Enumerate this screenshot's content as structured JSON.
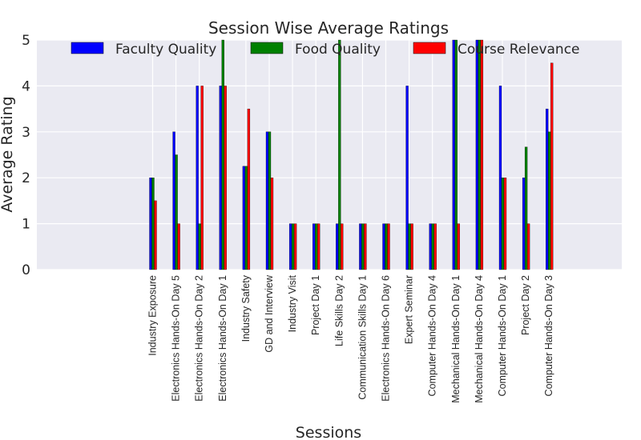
{
  "chart_data": {
    "type": "bar",
    "title": "Session Wise Average Ratings",
    "xlabel": "Sessions",
    "ylabel": "Average Rating",
    "ylim": [
      0,
      5
    ],
    "yticks": [
      "0",
      "1",
      "2",
      "3",
      "4",
      "5"
    ],
    "grid": true,
    "legend_position": "top",
    "categories": [
      "Industry Exposure",
      "Electronics Hands-On Day 5",
      "Electronics Hands-On Day 2",
      "Electronics Hands-On Day 1",
      "Industry Safety",
      "GD and Interview",
      "Industry Visit",
      "Project Day 1",
      "Life Skills Day 2",
      "Communication Skills Day 1",
      "Electronics Hands-On Day 6",
      "Expert Seminar",
      "Computer Hands-On Day 4",
      "Mechanical Hands-On Day 1",
      "Mechanical Hands-On Day 4",
      "Computer Hands-On Day 1",
      "Project Day 2",
      "Computer Hands-On Day 3"
    ],
    "series": [
      {
        "name": "Faculty Quality",
        "color": "#0000ff",
        "values": [
          2,
          3,
          4,
          4,
          2.25,
          3,
          1,
          1,
          1,
          1,
          1,
          4,
          1,
          5,
          5,
          4,
          2,
          3.5
        ]
      },
      {
        "name": "Food Quality",
        "color": "#008000",
        "values": [
          2,
          2.5,
          1,
          5,
          2.25,
          3,
          1,
          1,
          5,
          1,
          1,
          1,
          1,
          5,
          5,
          2,
          2.67,
          3
        ]
      },
      {
        "name": "Course Relevance",
        "color": "#ff0000",
        "values": [
          1.5,
          1,
          4,
          4,
          3.5,
          2,
          1,
          1,
          1,
          1,
          1,
          1,
          1,
          1,
          5,
          2,
          1,
          4.5
        ]
      }
    ]
  }
}
